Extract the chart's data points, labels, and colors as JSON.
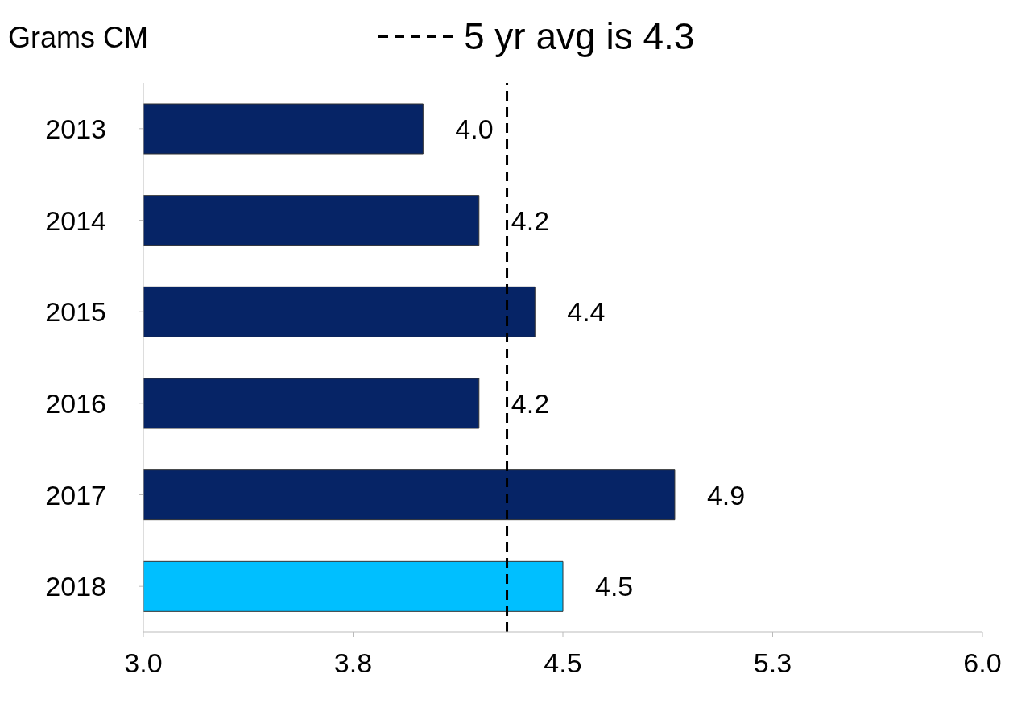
{
  "chart_data": {
    "type": "bar",
    "orientation": "horizontal",
    "ylabel": "Grams CM",
    "categories": [
      "2013",
      "2014",
      "2015",
      "2016",
      "2017",
      "2018"
    ],
    "values": [
      4.0,
      4.2,
      4.4,
      4.2,
      4.9,
      4.5
    ],
    "colors": [
      "#062466",
      "#062466",
      "#062466",
      "#062466",
      "#062466",
      "#00bfff"
    ],
    "xlim": [
      3,
      6
    ],
    "xticks": [
      {
        "value": 3,
        "label": "3.0"
      },
      {
        "value": 3.75,
        "label": "3.8"
      },
      {
        "value": 4.5,
        "label": "4.5"
      },
      {
        "value": 5.25,
        "label": "5.3"
      },
      {
        "value": 6,
        "label": "6.0"
      }
    ],
    "ref_lines": [
      {
        "axis": "x",
        "value": 4.3,
        "label": "5 yr avg is 4.3",
        "color": "#000000",
        "line_style": "dashed"
      }
    ],
    "value_labels": [
      "4.0",
      "4.2",
      "4.4",
      "4.2",
      "4.9",
      "4.5"
    ],
    "grid": false,
    "legend": "top"
  }
}
